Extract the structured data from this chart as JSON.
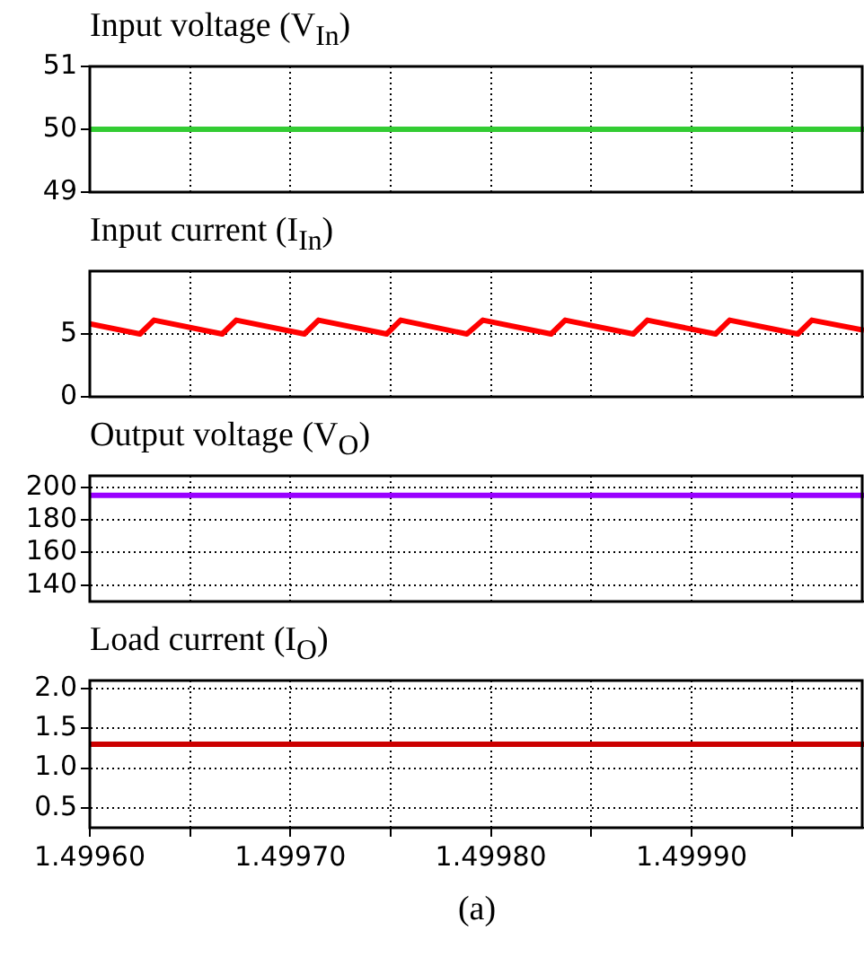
{
  "chart_data": [
    {
      "type": "line",
      "title": "Input voltage (V$_{In}$)",
      "xlim": [
        1.4996,
        1.499986
      ],
      "xticks": [
        1.4996,
        1.49965,
        1.4997,
        1.49975,
        1.4998,
        1.49985,
        1.4999,
        1.49995
      ],
      "ylim": [
        49,
        51
      ],
      "yticks": [
        49,
        50,
        51
      ],
      "grid": true,
      "legend": false,
      "marker": "none",
      "line_style": "solid",
      "tick_labels": "y",
      "series": [
        {
          "color": "#33cc33",
          "x": [
            1.4996,
            1.499986
          ],
          "values": [
            50,
            50
          ]
        }
      ]
    },
    {
      "type": "line",
      "title": "Input current (I$_{In}$)",
      "xlim": [
        1.4996,
        1.499986
      ],
      "xticks": [
        1.4996,
        1.49965,
        1.4997,
        1.49975,
        1.4998,
        1.49985,
        1.4999,
        1.49995
      ],
      "ylim": [
        0,
        10
      ],
      "yticks": [
        0,
        5
      ],
      "grid": true,
      "legend": false,
      "marker": "none",
      "line_style": "solid",
      "tick_labels": "y",
      "series": [
        {
          "color": "#ff0000",
          "x": [
            1.4996,
            1.499625,
            1.499632,
            1.499666,
            1.499673,
            1.499707,
            1.499714,
            1.499748,
            1.499755,
            1.499788,
            1.499796,
            1.49983,
            1.499837,
            1.499871,
            1.499878,
            1.499912,
            1.499919,
            1.499953,
            1.49996,
            1.499986
          ],
          "values": [
            5.8,
            5.0,
            6.1,
            5.0,
            6.1,
            5.0,
            6.1,
            5.0,
            6.1,
            5.0,
            6.1,
            5.0,
            6.1,
            5.0,
            6.1,
            5.0,
            6.1,
            5.0,
            6.1,
            5.3
          ]
        }
      ]
    },
    {
      "type": "line",
      "title": "Output voltage (V$_{O}$)",
      "xlim": [
        1.4996,
        1.499986
      ],
      "xticks": [
        1.4996,
        1.49965,
        1.4997,
        1.49975,
        1.4998,
        1.49985,
        1.4999,
        1.49995
      ],
      "ylim": [
        130,
        207
      ],
      "yticks": [
        140,
        160,
        180,
        200
      ],
      "grid": true,
      "legend": false,
      "marker": "none",
      "line_style": "solid",
      "tick_labels": "y",
      "series": [
        {
          "color": "#9900ff",
          "x": [
            1.4996,
            1.499986
          ],
          "values": [
            195,
            195
          ]
        }
      ]
    },
    {
      "type": "line",
      "title": "Load current (I$_{O}$)",
      "xlim": [
        1.4996,
        1.499986
      ],
      "xticks": [
        {
          "value": 1.4996,
          "label": "1.49960"
        },
        {
          "value": 1.49965,
          "label": null
        },
        {
          "value": 1.4997,
          "label": "1.49970"
        },
        {
          "value": 1.49975,
          "label": null
        },
        {
          "value": 1.4998,
          "label": "1.49980"
        },
        {
          "value": 1.49985,
          "label": null
        },
        {
          "value": 1.4999,
          "label": "1.49990"
        },
        {
          "value": 1.49995,
          "label": null
        }
      ],
      "ylim": [
        0.25,
        2.1
      ],
      "yticks": [
        {
          "value": 0.5,
          "label": "0.5"
        },
        {
          "value": 1,
          "label": "1.0"
        },
        {
          "value": 1.5,
          "label": "1.5"
        },
        {
          "value": 2,
          "label": "2.0"
        }
      ],
      "grid": true,
      "legend": false,
      "marker": "none",
      "line_style": "solid",
      "annotations": [
        "(a)"
      ],
      "series": [
        {
          "color": "#cc0000",
          "x": [
            1.4996,
            1.499986
          ],
          "values": [
            1.3,
            1.3
          ]
        }
      ]
    }
  ]
}
